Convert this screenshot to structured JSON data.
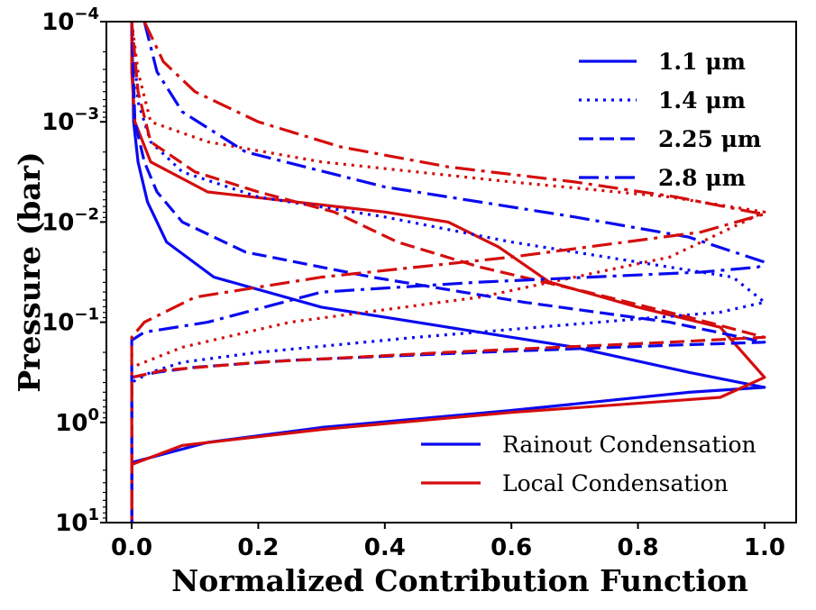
{
  "chart_data": {
    "type": "line",
    "title": "",
    "xlabel": "Normalized Contribution Function",
    "ylabel": "Pressure (bar)",
    "xlim": [
      -0.04,
      1.05
    ],
    "ylim_log10": [
      1,
      -4
    ],
    "y_scale": "log",
    "y_inverted": true,
    "x_ticks": [
      {
        "v": 0.0,
        "label": "0.0"
      },
      {
        "v": 0.2,
        "label": "0.2"
      },
      {
        "v": 0.4,
        "label": "0.4"
      },
      {
        "v": 0.6,
        "label": "0.6"
      },
      {
        "v": 0.8,
        "label": "0.8"
      },
      {
        "v": 1.0,
        "label": "1.0"
      }
    ],
    "y_ticks": [
      {
        "exp": -4,
        "base": "10",
        "sup": "−4"
      },
      {
        "exp": -3,
        "base": "10",
        "sup": "−3"
      },
      {
        "exp": -2,
        "base": "10",
        "sup": "−2"
      },
      {
        "exp": -1,
        "base": "10",
        "sup": "−1"
      },
      {
        "exp": 0,
        "base": "10",
        "sup": "0"
      },
      {
        "exp": 1,
        "base": "10",
        "sup": "1"
      }
    ],
    "colors": {
      "rainout": "#0a0af0",
      "local": "#d40d0d"
    },
    "legend_wavelength": {
      "position": "top-right",
      "entries": [
        {
          "label": "1.1 μm",
          "style": "solid"
        },
        {
          "label": "1.4 μm",
          "style": "dotted"
        },
        {
          "label": "2.25 μm",
          "style": "dashed"
        },
        {
          "label": "2.8 μm",
          "style": "dashdot"
        }
      ]
    },
    "legend_model": {
      "position": "bottom-right",
      "entries": [
        {
          "label": "Rainout Condensation",
          "color_key": "rainout"
        },
        {
          "label": "Local Condensation",
          "color_key": "local"
        }
      ]
    },
    "series": [
      {
        "name": "Rainout 1.1 μm",
        "model": "rainout",
        "style": "solid",
        "points": [
          [
            0.0,
            -4.0
          ],
          [
            0.003,
            -3.0
          ],
          [
            0.01,
            -2.6
          ],
          [
            0.025,
            -2.2
          ],
          [
            0.055,
            -1.8
          ],
          [
            0.13,
            -1.45
          ],
          [
            0.3,
            -1.15
          ],
          [
            0.5,
            -0.95
          ],
          [
            0.7,
            -0.75
          ],
          [
            0.88,
            -0.5
          ],
          [
            1.0,
            -0.35
          ],
          [
            0.88,
            -0.3
          ],
          [
            0.6,
            -0.12
          ],
          [
            0.3,
            0.05
          ],
          [
            0.12,
            0.2
          ],
          [
            0.0,
            0.4
          ],
          [
            0.0,
            1.0
          ]
        ]
      },
      {
        "name": "Local 1.1 μm",
        "model": "local",
        "style": "solid",
        "points": [
          [
            0.0,
            -4.0
          ],
          [
            0.0,
            -3.5
          ],
          [
            0.005,
            -3.0
          ],
          [
            0.03,
            -2.6
          ],
          [
            0.12,
            -2.3
          ],
          [
            0.4,
            -2.1
          ],
          [
            0.5,
            -2.0
          ],
          [
            0.58,
            -1.75
          ],
          [
            0.66,
            -1.4
          ],
          [
            0.8,
            -1.15
          ],
          [
            0.93,
            -0.95
          ],
          [
            1.0,
            -0.45
          ],
          [
            0.93,
            -0.25
          ],
          [
            0.6,
            -0.1
          ],
          [
            0.3,
            0.07
          ],
          [
            0.08,
            0.23
          ],
          [
            0.0,
            0.42
          ],
          [
            0.0,
            1.0
          ]
        ]
      },
      {
        "name": "Rainout 1.4 μm",
        "model": "rainout",
        "style": "dotted",
        "points": [
          [
            0.0,
            -4.0
          ],
          [
            0.01,
            -3.2
          ],
          [
            0.03,
            -2.8
          ],
          [
            0.08,
            -2.5
          ],
          [
            0.2,
            -2.25
          ],
          [
            0.4,
            -2.05
          ],
          [
            0.6,
            -1.8
          ],
          [
            0.8,
            -1.6
          ],
          [
            0.95,
            -1.45
          ],
          [
            1.0,
            -1.2
          ],
          [
            0.93,
            -1.1
          ],
          [
            0.7,
            -0.98
          ],
          [
            0.45,
            -0.85
          ],
          [
            0.2,
            -0.7
          ],
          [
            0.08,
            -0.6
          ],
          [
            0.03,
            -0.5
          ],
          [
            0.0,
            -0.4
          ],
          [
            0.0,
            1.0
          ]
        ]
      },
      {
        "name": "Local 1.4 μm",
        "model": "local",
        "style": "dotted",
        "points": [
          [
            0.0,
            -4.0
          ],
          [
            0.01,
            -3.5
          ],
          [
            0.03,
            -3.0
          ],
          [
            0.12,
            -2.8
          ],
          [
            0.3,
            -2.6
          ],
          [
            0.6,
            -2.4
          ],
          [
            0.85,
            -2.25
          ],
          [
            1.0,
            -2.1
          ],
          [
            0.95,
            -1.95
          ],
          [
            0.85,
            -1.65
          ],
          [
            0.55,
            -1.25
          ],
          [
            0.25,
            -1.0
          ],
          [
            0.08,
            -0.75
          ],
          [
            0.0,
            -0.55
          ],
          [
            0.0,
            1.0
          ]
        ]
      },
      {
        "name": "Rainout 2.25 μm",
        "model": "rainout",
        "style": "dashed",
        "points": [
          [
            0.0,
            -4.0
          ],
          [
            0.005,
            -3.0
          ],
          [
            0.02,
            -2.6
          ],
          [
            0.04,
            -2.3
          ],
          [
            0.08,
            -2.0
          ],
          [
            0.18,
            -1.7
          ],
          [
            0.38,
            -1.45
          ],
          [
            0.62,
            -1.2
          ],
          [
            0.85,
            -1.0
          ],
          [
            1.0,
            -0.8
          ],
          [
            0.85,
            -0.77
          ],
          [
            0.55,
            -0.7
          ],
          [
            0.25,
            -0.62
          ],
          [
            0.1,
            -0.55
          ],
          [
            0.04,
            -0.5
          ],
          [
            0.0,
            -0.45
          ],
          [
            0.0,
            1.0
          ]
        ]
      },
      {
        "name": "Local 2.25 μm",
        "model": "local",
        "style": "dashed",
        "points": [
          [
            0.0,
            -4.0
          ],
          [
            0.01,
            -3.3
          ],
          [
            0.03,
            -2.8
          ],
          [
            0.1,
            -2.5
          ],
          [
            0.2,
            -2.3
          ],
          [
            0.32,
            -2.1
          ],
          [
            0.42,
            -1.8
          ],
          [
            0.55,
            -1.55
          ],
          [
            0.72,
            -1.3
          ],
          [
            0.88,
            -1.05
          ],
          [
            1.0,
            -0.85
          ],
          [
            0.85,
            -0.8
          ],
          [
            0.5,
            -0.7
          ],
          [
            0.2,
            -0.6
          ],
          [
            0.05,
            -0.52
          ],
          [
            0.0,
            -0.45
          ],
          [
            0.0,
            1.0
          ]
        ]
      },
      {
        "name": "Rainout 2.8 μm",
        "model": "rainout",
        "style": "dashdot",
        "points": [
          [
            0.02,
            -4.0
          ],
          [
            0.04,
            -3.5
          ],
          [
            0.08,
            -3.1
          ],
          [
            0.18,
            -2.7
          ],
          [
            0.4,
            -2.35
          ],
          [
            0.7,
            -2.05
          ],
          [
            0.88,
            -1.85
          ],
          [
            1.0,
            -1.6
          ],
          [
            0.99,
            -1.55
          ],
          [
            0.9,
            -1.5
          ],
          [
            0.55,
            -1.4
          ],
          [
            0.3,
            -1.3
          ],
          [
            0.12,
            -1.0
          ],
          [
            0.02,
            -0.9
          ],
          [
            0.0,
            -0.82
          ],
          [
            0.0,
            1.0
          ]
        ]
      },
      {
        "name": "Local 2.8 μm",
        "model": "local",
        "style": "dashdot",
        "points": [
          [
            0.02,
            -4.0
          ],
          [
            0.05,
            -3.6
          ],
          [
            0.1,
            -3.3
          ],
          [
            0.2,
            -3.0
          ],
          [
            0.33,
            -2.75
          ],
          [
            0.5,
            -2.55
          ],
          [
            0.7,
            -2.4
          ],
          [
            0.86,
            -2.25
          ],
          [
            0.98,
            -2.1
          ],
          [
            1.0,
            -2.08
          ],
          [
            0.9,
            -1.9
          ],
          [
            0.6,
            -1.65
          ],
          [
            0.3,
            -1.45
          ],
          [
            0.1,
            -1.25
          ],
          [
            0.02,
            -1.0
          ],
          [
            0.0,
            -0.85
          ],
          [
            0.0,
            1.0
          ]
        ]
      }
    ]
  }
}
